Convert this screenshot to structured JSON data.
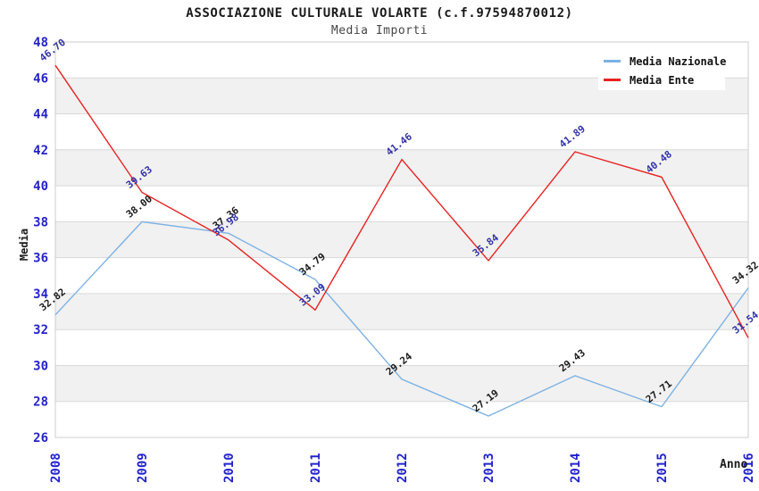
{
  "chart_data": {
    "type": "line",
    "title": "ASSOCIAZIONE CULTURALE VOLARTE (c.f.97594870012)",
    "subtitle": "Media Importi",
    "xlabel": "Anno",
    "ylabel": "Media",
    "x": [
      "2008",
      "2009",
      "2010",
      "2011",
      "2012",
      "2013",
      "2014",
      "2015",
      "2016"
    ],
    "ylim": [
      26,
      48
    ],
    "ytick_step": 2,
    "grid": "horizontal-bands-alternating",
    "legend_position": "top-right",
    "axis_tick_color": "#2323cc",
    "plot_border_color": "#cccccc",
    "band_color": "#f1f1f1",
    "gridline_color": "#d9d9d9",
    "background_color": "#ffffff",
    "series": [
      {
        "name": "Media Nazionale",
        "color": "#7cb1e3",
        "label_color": "#1a1a1a",
        "values": [
          32.82,
          38.0,
          37.36,
          34.79,
          29.24,
          27.19,
          29.43,
          27.71,
          34.32
        ]
      },
      {
        "name": "Media Ente",
        "color": "#e82222",
        "label_color": "#3333a8",
        "values": [
          46.7,
          39.63,
          36.98,
          33.09,
          41.46,
          35.84,
          41.89,
          40.48,
          31.54
        ]
      }
    ]
  }
}
